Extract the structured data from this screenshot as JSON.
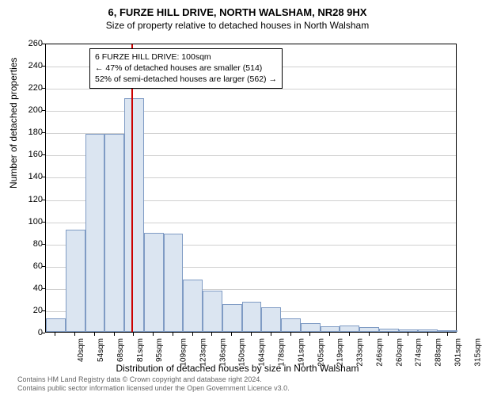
{
  "title": "6, FURZE HILL DRIVE, NORTH WALSHAM, NR28 9HX",
  "subtitle": "Size of property relative to detached houses in North Walsham",
  "y_axis_title": "Number of detached properties",
  "x_axis_title": "Distribution of detached houses by size in North Walsham",
  "chart": {
    "type": "histogram",
    "ylim": [
      0,
      260
    ],
    "ytick_step": 20,
    "x_categories": [
      "40sqm",
      "54sqm",
      "68sqm",
      "81sqm",
      "95sqm",
      "109sqm",
      "123sqm",
      "136sqm",
      "150sqm",
      "164sqm",
      "178sqm",
      "191sqm",
      "205sqm",
      "219sqm",
      "233sqm",
      "246sqm",
      "260sqm",
      "274sqm",
      "288sqm",
      "301sqm",
      "315sqm"
    ],
    "values": [
      12,
      92,
      178,
      178,
      210,
      89,
      88,
      47,
      37,
      25,
      27,
      22,
      12,
      8,
      5,
      6,
      4,
      3,
      2,
      2,
      1
    ],
    "bar_fill": "#dbe5f1",
    "bar_border": "#7f9bc4",
    "grid_color": "#d0d0d0",
    "background": "#ffffff",
    "marker_value_index": 4,
    "marker_color": "#cc0000"
  },
  "annotation": {
    "line1": "6 FURZE HILL DRIVE: 100sqm",
    "line2": "← 47% of detached houses are smaller (514)",
    "line3": "52% of semi-detached houses are larger (562) →"
  },
  "footer": {
    "line1": "Contains HM Land Registry data © Crown copyright and database right 2024.",
    "line2": "Contains public sector information licensed under the Open Government Licence v3.0."
  }
}
